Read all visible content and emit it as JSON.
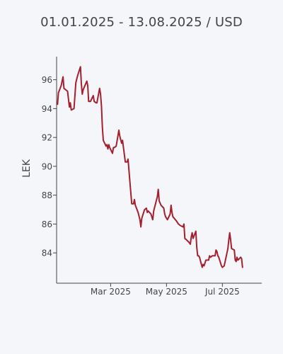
{
  "chart_data": {
    "type": "line",
    "title": "01.01.2025 - 13.08.2025 / USD",
    "xlabel": "",
    "ylabel": "LEK",
    "series": [
      {
        "color": "#a4202e",
        "points": [
          [
            "2025-01-02",
            94.3
          ],
          [
            "2025-01-03",
            95.1
          ],
          [
            "2025-01-06",
            95.6
          ],
          [
            "2025-01-08",
            96.2
          ],
          [
            "2025-01-09",
            95.4
          ],
          [
            "2025-01-13",
            95.2
          ],
          [
            "2025-01-15",
            94.1
          ],
          [
            "2025-01-16",
            94.4
          ],
          [
            "2025-01-17",
            93.9
          ],
          [
            "2025-01-20",
            94.0
          ],
          [
            "2025-01-22",
            95.8
          ],
          [
            "2025-01-24",
            96.3
          ],
          [
            "2025-01-27",
            96.9
          ],
          [
            "2025-01-28",
            95.7
          ],
          [
            "2025-01-29",
            95.0
          ],
          [
            "2025-01-30",
            95.3
          ],
          [
            "2025-02-03",
            95.9
          ],
          [
            "2025-02-04",
            95.6
          ],
          [
            "2025-02-05",
            94.5
          ],
          [
            "2025-02-07",
            94.5
          ],
          [
            "2025-02-10",
            94.9
          ],
          [
            "2025-02-11",
            94.5
          ],
          [
            "2025-02-13",
            94.4
          ],
          [
            "2025-02-14",
            94.4
          ],
          [
            "2025-02-17",
            95.4
          ],
          [
            "2025-02-18",
            95.0
          ],
          [
            "2025-02-19",
            94.2
          ],
          [
            "2025-02-20",
            92.7
          ],
          [
            "2025-02-21",
            91.8
          ],
          [
            "2025-02-24",
            91.4
          ],
          [
            "2025-02-25",
            91.5
          ],
          [
            "2025-02-26",
            91.2
          ],
          [
            "2025-02-27",
            91.5
          ],
          [
            "2025-02-28",
            91.3
          ],
          [
            "2025-03-03",
            90.9
          ],
          [
            "2025-03-04",
            91.3
          ],
          [
            "2025-03-05",
            91.3
          ],
          [
            "2025-03-07",
            91.4
          ],
          [
            "2025-03-10",
            92.5
          ],
          [
            "2025-03-11",
            92.1
          ],
          [
            "2025-03-13",
            91.6
          ],
          [
            "2025-03-14",
            91.8
          ],
          [
            "2025-03-17",
            90.3
          ],
          [
            "2025-03-19",
            90.3
          ],
          [
            "2025-03-20",
            90.5
          ],
          [
            "2025-03-21",
            89.7
          ],
          [
            "2025-03-24",
            87.4
          ],
          [
            "2025-03-26",
            87.4
          ],
          [
            "2025-03-27",
            87.7
          ],
          [
            "2025-03-28",
            87.3
          ],
          [
            "2025-03-31",
            86.8
          ],
          [
            "2025-04-02",
            86.3
          ],
          [
            "2025-04-03",
            85.8
          ],
          [
            "2025-04-04",
            86.4
          ],
          [
            "2025-04-07",
            87.0
          ],
          [
            "2025-04-09",
            87.1
          ],
          [
            "2025-04-10",
            86.8
          ],
          [
            "2025-04-11",
            86.9
          ],
          [
            "2025-04-14",
            86.7
          ],
          [
            "2025-04-16",
            86.3
          ],
          [
            "2025-04-17",
            86.9
          ],
          [
            "2025-04-21",
            87.9
          ],
          [
            "2025-04-22",
            88.4
          ],
          [
            "2025-04-23",
            87.6
          ],
          [
            "2025-04-25",
            87.3
          ],
          [
            "2025-04-28",
            87.1
          ],
          [
            "2025-04-29",
            86.7
          ],
          [
            "2025-04-30",
            86.5
          ],
          [
            "2025-05-02",
            86.3
          ],
          [
            "2025-05-05",
            86.7
          ],
          [
            "2025-05-06",
            87.3
          ],
          [
            "2025-05-07",
            86.8
          ],
          [
            "2025-05-08",
            86.5
          ],
          [
            "2025-05-12",
            86.2
          ],
          [
            "2025-05-14",
            86.0
          ],
          [
            "2025-05-16",
            85.9
          ],
          [
            "2025-05-19",
            85.8
          ],
          [
            "2025-05-20",
            86.0
          ],
          [
            "2025-05-21",
            85.0
          ],
          [
            "2025-05-23",
            84.9
          ],
          [
            "2025-05-26",
            84.7
          ],
          [
            "2025-05-27",
            84.6
          ],
          [
            "2025-05-28",
            85.1
          ],
          [
            "2025-05-29",
            85.4
          ],
          [
            "2025-05-30",
            85.0
          ],
          [
            "2025-06-02",
            85.5
          ],
          [
            "2025-06-03",
            84.4
          ],
          [
            "2025-06-04",
            83.8
          ],
          [
            "2025-06-05",
            83.8
          ],
          [
            "2025-06-06",
            83.7
          ],
          [
            "2025-06-09",
            83.0
          ],
          [
            "2025-06-10",
            83.2
          ],
          [
            "2025-06-11",
            83.1
          ],
          [
            "2025-06-12",
            83.3
          ],
          [
            "2025-06-13",
            83.5
          ],
          [
            "2025-06-16",
            83.5
          ],
          [
            "2025-06-17",
            83.8
          ],
          [
            "2025-06-18",
            83.7
          ],
          [
            "2025-06-20",
            83.8
          ],
          [
            "2025-06-23",
            83.8
          ],
          [
            "2025-06-24",
            84.2
          ],
          [
            "2025-06-25",
            84.1
          ],
          [
            "2025-06-26",
            83.8
          ],
          [
            "2025-06-27",
            83.7
          ],
          [
            "2025-06-30",
            83.1
          ],
          [
            "2025-07-01",
            83.0
          ],
          [
            "2025-07-03",
            83.1
          ],
          [
            "2025-07-04",
            83.4
          ],
          [
            "2025-07-07",
            84.3
          ],
          [
            "2025-07-08",
            84.9
          ],
          [
            "2025-07-09",
            85.4
          ],
          [
            "2025-07-10",
            84.9
          ],
          [
            "2025-07-11",
            84.3
          ],
          [
            "2025-07-14",
            84.2
          ],
          [
            "2025-07-15",
            83.5
          ],
          [
            "2025-07-16",
            83.4
          ],
          [
            "2025-07-17",
            83.7
          ],
          [
            "2025-07-18",
            83.5
          ],
          [
            "2025-07-21",
            83.7
          ],
          [
            "2025-07-22",
            83.6
          ],
          [
            "2025-07-23",
            83.0
          ]
        ]
      }
    ],
    "x_range": [
      "2025-01-01",
      "2025-08-13"
    ],
    "xticks": [
      {
        "date": "2025-03-01",
        "label": "Mar 2025"
      },
      {
        "date": "2025-05-01",
        "label": "May 2025"
      },
      {
        "date": "2025-07-01",
        "label": "Jul 2025"
      }
    ],
    "ylim": [
      81.9,
      97.6
    ],
    "yticks": [
      84,
      86,
      88,
      90,
      92,
      94,
      96
    ],
    "grid": false,
    "legend": "none"
  }
}
